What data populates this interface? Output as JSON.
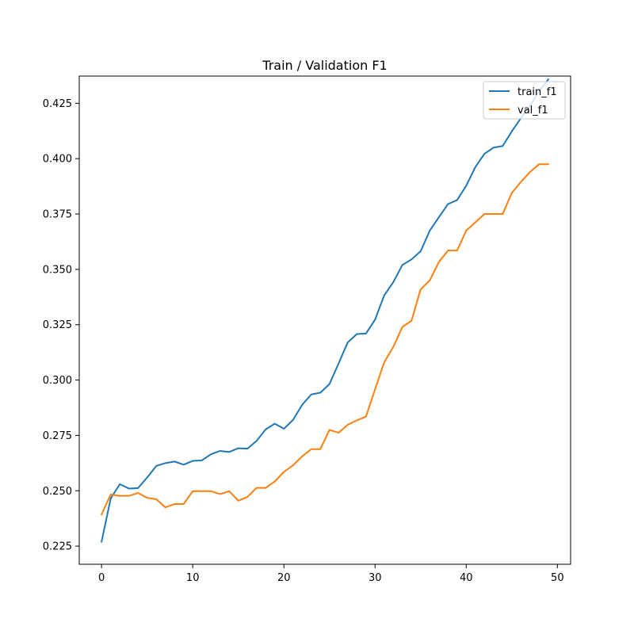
{
  "chart_data": {
    "type": "line",
    "title": "Train / Validation F1",
    "xlabel": "",
    "ylabel": "",
    "xlim": [
      -2.45,
      51.45
    ],
    "ylim": [
      0.2168,
      0.4373
    ],
    "xticks": [
      0,
      10,
      20,
      30,
      40,
      50
    ],
    "yticks": [
      0.225,
      0.25,
      0.275,
      0.3,
      0.325,
      0.35,
      0.375,
      0.4,
      0.425
    ],
    "ytick_labels": [
      "0.225",
      "0.250",
      "0.275",
      "0.300",
      "0.325",
      "0.350",
      "0.375",
      "0.400",
      "0.425"
    ],
    "grid": false,
    "legend_position": "top-right",
    "x": [
      0,
      1,
      2,
      3,
      4,
      5,
      6,
      7,
      8,
      9,
      10,
      11,
      12,
      13,
      14,
      15,
      16,
      17,
      18,
      19,
      20,
      21,
      22,
      23,
      24,
      25,
      26,
      27,
      28,
      29,
      30,
      31,
      32,
      33,
      34,
      35,
      36,
      37,
      38,
      39,
      40,
      41,
      42,
      43,
      44,
      45,
      46,
      47,
      48,
      49
    ],
    "series": [
      {
        "name": "train_f1",
        "color": "#1f77b4",
        "values": [
          0.227,
          0.2465,
          0.253,
          0.251,
          0.2512,
          0.256,
          0.2612,
          0.2625,
          0.2632,
          0.2618,
          0.2635,
          0.2637,
          0.2665,
          0.268,
          0.2675,
          0.2692,
          0.269,
          0.2725,
          0.2777,
          0.2803,
          0.278,
          0.282,
          0.2888,
          0.2935,
          0.2943,
          0.2982,
          0.3075,
          0.317,
          0.3208,
          0.321,
          0.3273,
          0.3382,
          0.3442,
          0.352,
          0.3545,
          0.3582,
          0.3675,
          0.3735,
          0.3795,
          0.3813,
          0.3878,
          0.3962,
          0.4022,
          0.405,
          0.4057,
          0.4123,
          0.4183,
          0.424,
          0.4305,
          0.4358
        ]
      },
      {
        "name": "val_f1",
        "color": "#ff7f0e",
        "values": [
          0.2393,
          0.2483,
          0.2477,
          0.2477,
          0.249,
          0.2468,
          0.2462,
          0.2425,
          0.244,
          0.244,
          0.2498,
          0.2498,
          0.2498,
          0.2485,
          0.2498,
          0.2455,
          0.2472,
          0.2513,
          0.2513,
          0.2542,
          0.2585,
          0.2615,
          0.2655,
          0.2688,
          0.2688,
          0.2775,
          0.2762,
          0.2798,
          0.2818,
          0.2835,
          0.2958,
          0.308,
          0.315,
          0.324,
          0.3268,
          0.341,
          0.345,
          0.3533,
          0.3585,
          0.3585,
          0.3675,
          0.3712,
          0.375,
          0.375,
          0.375,
          0.3845,
          0.3895,
          0.394,
          0.3975,
          0.3975
        ]
      }
    ]
  }
}
